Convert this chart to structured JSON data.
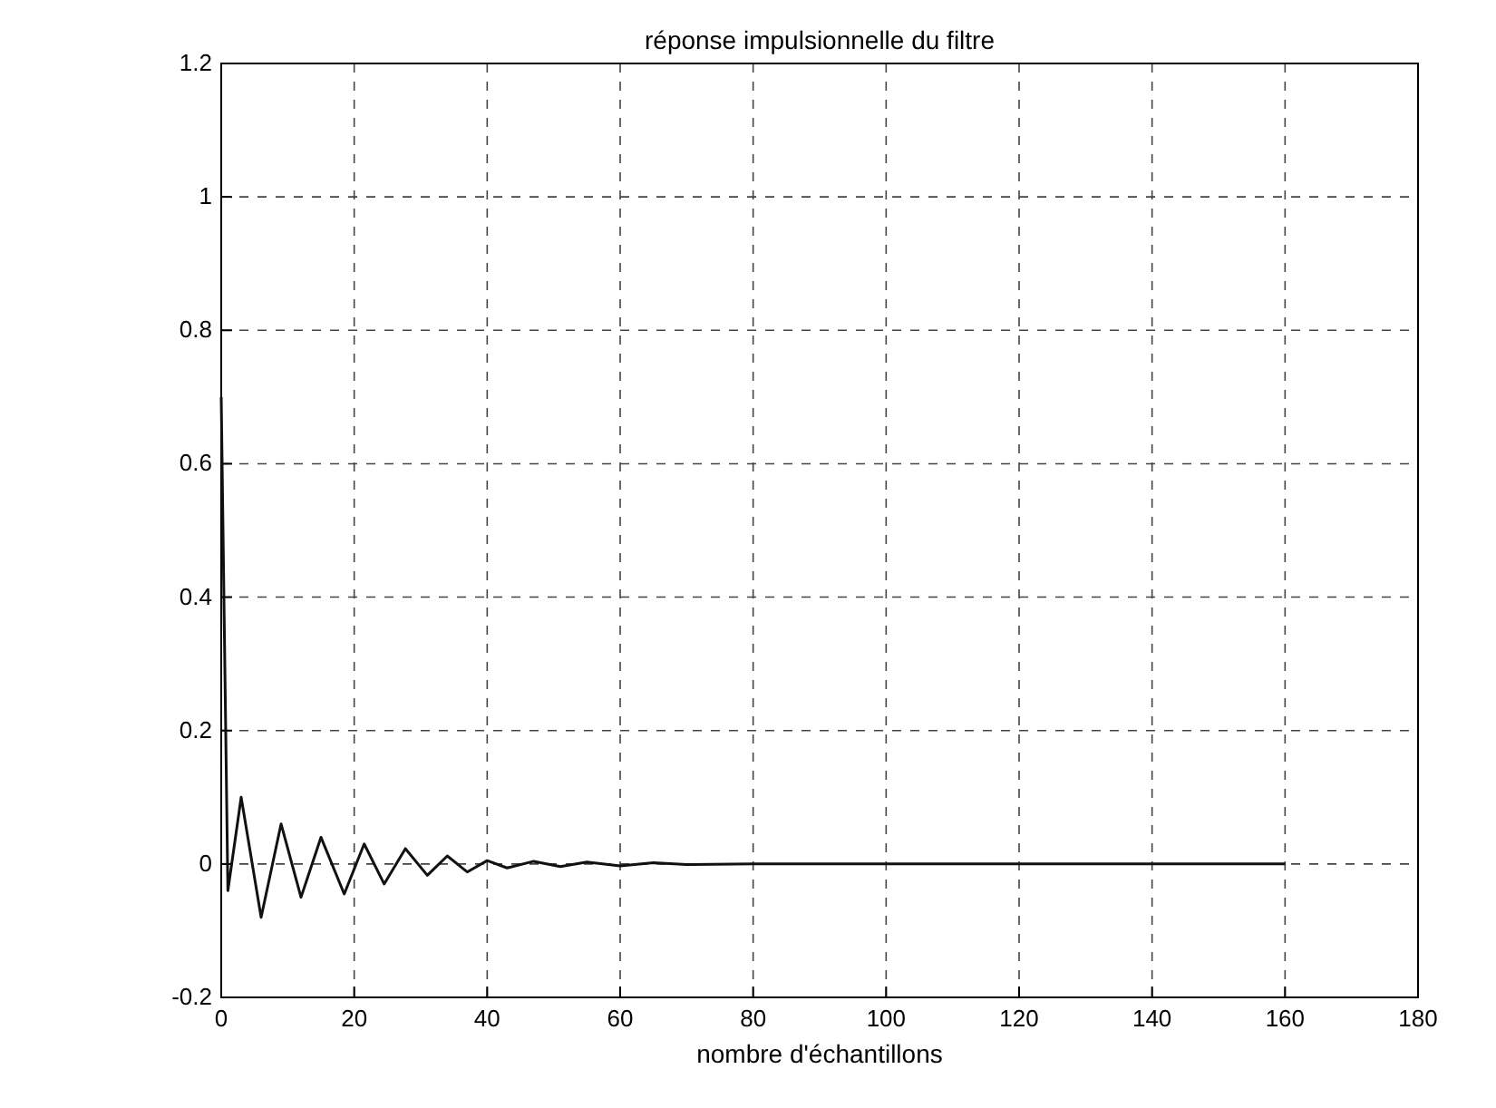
{
  "chart_data": {
    "type": "line",
    "title": "réponse impulsionnelle du filtre",
    "xlabel": "nombre d'échantillons",
    "xlim": [
      0,
      180
    ],
    "xticks": [
      0,
      20,
      40,
      60,
      80,
      100,
      120,
      140,
      160,
      180
    ],
    "ylim": [
      -0.2,
      1.2
    ],
    "yticks": [
      -0.2,
      0,
      0.2,
      0.4,
      0.6,
      0.8,
      1,
      1.2
    ],
    "grid": true,
    "line_style": "solid",
    "marker": "none",
    "series": [
      {
        "color": "#111111",
        "x": [
          0,
          1,
          3,
          6,
          9,
          12,
          15,
          18.5,
          21.5,
          24.5,
          27.7,
          31,
          34,
          37,
          40,
          43,
          47,
          51,
          55,
          60,
          65,
          70,
          80,
          100,
          120,
          140,
          160
        ],
        "values": [
          0.7,
          -0.04,
          0.1,
          -0.08,
          0.06,
          -0.05,
          0.04,
          -0.045,
          0.03,
          -0.03,
          0.023,
          -0.017,
          0.012,
          -0.012,
          0.005,
          -0.006,
          0.004,
          -0.004,
          0.003,
          -0.003,
          0.002,
          -0.001,
          0,
          0,
          0,
          0,
          0
        ]
      }
    ]
  }
}
